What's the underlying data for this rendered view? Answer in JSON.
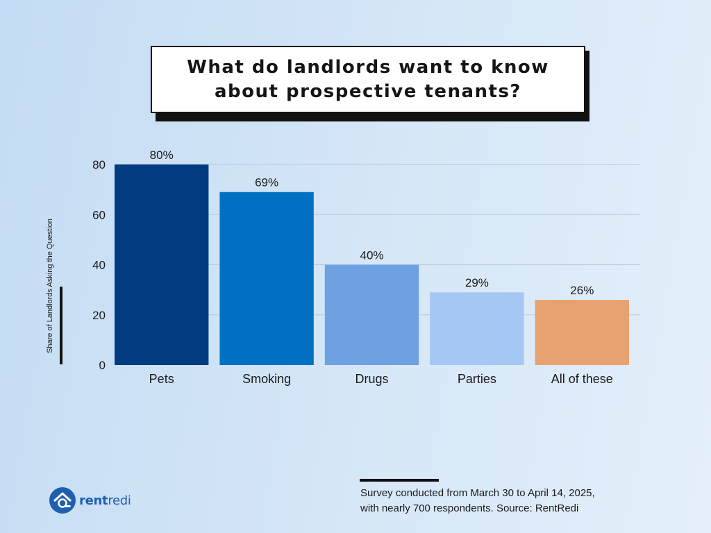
{
  "title_line1": "What do landlords want to know",
  "title_line2": "about prospective tenants?",
  "chart_data": {
    "type": "bar",
    "title": "What do landlords want to know about prospective tenants?",
    "categories": [
      "Pets",
      "Smoking",
      "Drugs",
      "Parties",
      "All of these"
    ],
    "values": [
      80,
      69,
      40,
      29,
      26
    ],
    "data_labels": [
      "80%",
      "69%",
      "40%",
      "29%",
      "26%"
    ],
    "colors": [
      "#003c7f",
      "#0071c2",
      "#6fa0e1",
      "#a5c7f4",
      "#e8a272"
    ],
    "ylabel": "Share of Landlords Asking the Question",
    "xlabel": "",
    "ylim": [
      0,
      80
    ],
    "yticks": [
      0,
      20,
      40,
      60,
      80
    ],
    "grid": true
  },
  "source": {
    "line1": "Survey conducted from March 30 to April 14, 2025,",
    "line2": "with nearly 700 respondents. Source: RentRedi"
  },
  "logo": {
    "bold": "rent",
    "light": "redi",
    "icon": "house-key-logo-icon",
    "color": "#1f5fb0"
  }
}
